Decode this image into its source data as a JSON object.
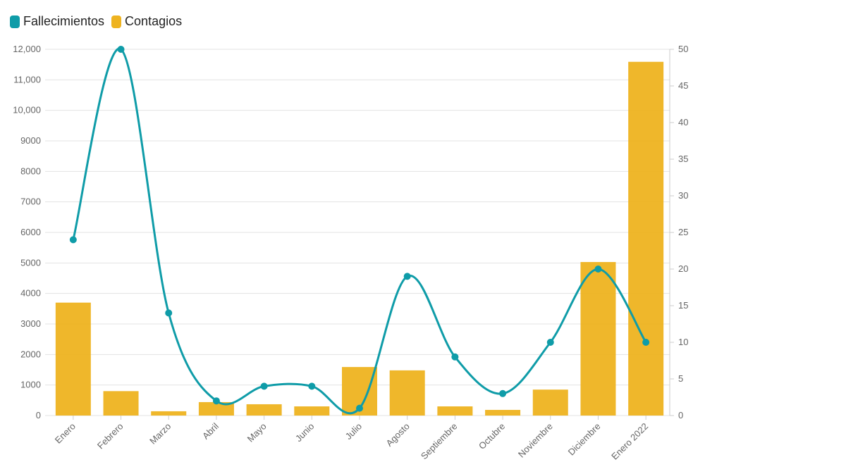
{
  "chart_data": {
    "type": "bar+line",
    "categories": [
      "Enero",
      "Febrero",
      "Marzo",
      "Abril",
      "Mayo",
      "Junio",
      "Julio",
      "Agosto",
      "Septiembre",
      "Octubre",
      "Noviembre",
      "Diciembre",
      "Enero 2022"
    ],
    "series": [
      {
        "name": "Fallecimientos",
        "type": "line",
        "axis": "right",
        "color": "#0f9ca8",
        "values": [
          24,
          50,
          14,
          2,
          4,
          4,
          1,
          19,
          8,
          3,
          10,
          20,
          10
        ]
      },
      {
        "name": "Contagios",
        "type": "bar",
        "axis": "left",
        "color": "#eeb320",
        "values": [
          3700,
          800,
          140,
          440,
          370,
          300,
          1590,
          1480,
          300,
          185,
          850,
          5030,
          11590
        ]
      }
    ],
    "left_axis": {
      "ylim": [
        0,
        12000
      ],
      "ticks": [
        "0",
        "1000",
        "2000",
        "3000",
        "4000",
        "5000",
        "6000",
        "7000",
        "8000",
        "9000",
        "10,000",
        "11,000",
        "12,000"
      ]
    },
    "right_axis": {
      "ylim": [
        0,
        50
      ],
      "ticks": [
        "0",
        "5",
        "10",
        "15",
        "20",
        "25",
        "30",
        "35",
        "40",
        "45",
        "50"
      ]
    },
    "grid": true,
    "legend": "top-left"
  }
}
